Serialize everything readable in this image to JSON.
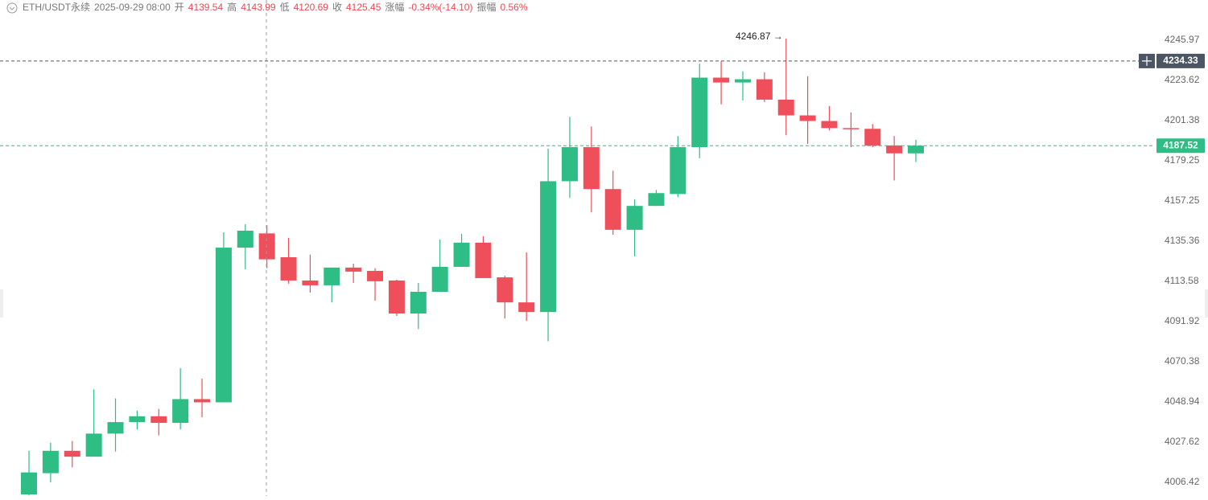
{
  "header": {
    "symbol": "ETH/USDT永续",
    "time": "2025-09-29 08:00",
    "items": [
      {
        "label": "开",
        "value": "4139.54"
      },
      {
        "label": "高",
        "value": "4143.99"
      },
      {
        "label": "低",
        "value": "4120.69"
      },
      {
        "label": "收",
        "value": "4125.45"
      },
      {
        "label": "涨幅",
        "value": "-0.34%(-14.10)"
      },
      {
        "label": "振幅",
        "value": "0.56%"
      }
    ]
  },
  "chart_data": {
    "type": "candlestick",
    "log_scale": true,
    "up_color": "#2ebd85",
    "down_color": "#ef4f5a",
    "ylim": [
      3999.2,
      4268.4
    ],
    "yticks": [
      4006.42,
      4027.62,
      4048.94,
      4070.38,
      4091.92,
      4113.58,
      4135.36,
      4157.25,
      4179.25,
      4201.38,
      4223.62,
      4245.97
    ],
    "open": [
      4000.0,
      4011.2,
      4023.0,
      4019.9,
      4032.1,
      4038.2,
      4041.3,
      4037.8,
      4050.4,
      4048.7,
      4131.8,
      4139.54,
      4126.6,
      4114.0,
      4111.4,
      4121.0,
      4119.2,
      4114.0,
      4096.2,
      4107.9,
      4121.4,
      4134.5,
      4115.7,
      4102.2,
      4097.0,
      4168.0,
      4186.7,
      4163.7,
      4141.5,
      4154.5,
      4161.0,
      4186.7,
      4225.1,
      4222.4,
      4224.2,
      4212.9,
      4204.2,
      4201.1,
      4197.2,
      4196.8,
      4187.6,
      4183.3
    ],
    "high": [
      4023.0,
      4027.3,
      4028.2,
      4055.6,
      4050.8,
      4044.3,
      4045.2,
      4066.9,
      4061.3,
      4140.1,
      4144.5,
      4143.99,
      4137.1,
      4128.0,
      4121.0,
      4123.1,
      4120.6,
      4114.4,
      4112.7,
      4136.2,
      4139.3,
      4138.0,
      4116.6,
      4129.2,
      4185.9,
      4203.3,
      4198.1,
      4173.7,
      4158.0,
      4163.2,
      4192.8,
      4232.9,
      4234.2,
      4228.6,
      4228.1,
      4246.87,
      4225.9,
      4209.4,
      4205.9,
      4199.4,
      4192.8,
      4190.7
    ],
    "low": [
      3999.5,
      4006.4,
      4014.3,
      4019.9,
      4022.6,
      4034.3,
      4031.2,
      4034.3,
      4040.8,
      4048.7,
      4120.1,
      4120.69,
      4112.3,
      4107.5,
      4102.2,
      4112.7,
      4103.1,
      4094.9,
      4087.9,
      4107.9,
      4121.4,
      4115.3,
      4093.5,
      4092.2,
      4081.3,
      4158.9,
      4151.0,
      4138.8,
      4127.1,
      4154.5,
      4159.3,
      4180.6,
      4210.3,
      4212.4,
      4211.6,
      4193.3,
      4188.5,
      4195.9,
      4186.7,
      4186.7,
      4168.4,
      4178.5
    ],
    "close": [
      4011.6,
      4023.0,
      4019.9,
      4032.1,
      4038.2,
      4041.3,
      4037.8,
      4050.4,
      4048.7,
      4131.8,
      4141.0,
      4125.45,
      4114.0,
      4111.4,
      4121.0,
      4118.8,
      4113.6,
      4096.2,
      4107.9,
      4121.4,
      4134.5,
      4115.3,
      4102.2,
      4097.0,
      4168.0,
      4186.7,
      4163.7,
      4141.5,
      4154.5,
      4161.5,
      4186.7,
      4225.1,
      4222.4,
      4224.2,
      4212.9,
      4204.2,
      4201.1,
      4197.2,
      4196.8,
      4187.6,
      4183.3,
      4187.52
    ],
    "max_label": "4246.87 →",
    "crosshair_price": 4234.33,
    "last_price": 4187.52
  }
}
